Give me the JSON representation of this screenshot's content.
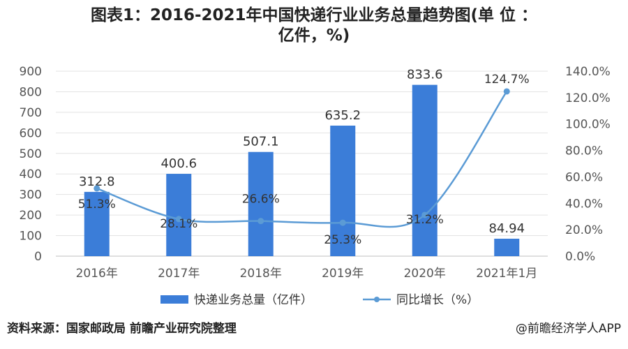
{
  "header": {
    "title_line1": "图表1：2016-2021年中国快递行业业务总量趋势图(单 位 ：",
    "title_line2": "亿件，%)"
  },
  "footer": {
    "source": "资料来源：国家邮政局 前瞻产业研究院整理",
    "credit": "@前瞻经济学人APP"
  },
  "colors": {
    "bar": "#3b7dd8",
    "line": "#5b9bd5",
    "axis_text": "#555555"
  },
  "chart_data": {
    "type": "bar",
    "categories": [
      "2016年",
      "2017年",
      "2018年",
      "2019年",
      "2020年",
      "2021年1月"
    ],
    "series": [
      {
        "name": "快递业务总量（亿件）",
        "type": "bar",
        "axis": "left",
        "values": [
          312.8,
          400.6,
          507.1,
          635.2,
          833.6,
          84.94
        ],
        "labels": [
          "312.8",
          "400.6",
          "507.1",
          "635.2",
          "833.6",
          "84.94"
        ]
      },
      {
        "name": "同比增长（%）",
        "type": "line",
        "axis": "right",
        "values": [
          51.3,
          28.1,
          26.6,
          25.3,
          31.2,
          124.7
        ],
        "labels": [
          "51.3%",
          "28.1%",
          "26.6%",
          "25.3%",
          "31.2%",
          "124.7%"
        ]
      }
    ],
    "y_left": {
      "range": [
        0,
        900
      ],
      "ticks": [
        "0",
        "100",
        "200",
        "300",
        "400",
        "500",
        "600",
        "700",
        "800",
        "900"
      ]
    },
    "y_right": {
      "range": [
        0,
        140
      ],
      "ticks": [
        "0.0%",
        "20.0%",
        "40.0%",
        "60.0%",
        "80.0%",
        "100.0%",
        "120.0%",
        "140.0%"
      ]
    },
    "grid": true,
    "legend_position": "bottom"
  }
}
